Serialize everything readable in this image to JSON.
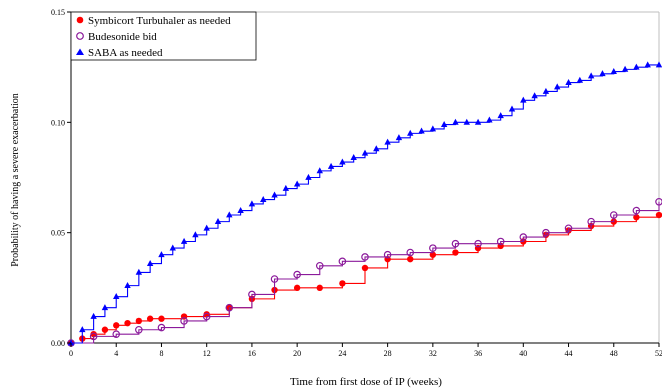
{
  "chart_data": {
    "type": "line",
    "title": "",
    "xlabel": "Time from first dose of IP (weeks)",
    "ylabel": "Probability of having a severe exacerbation",
    "xlim": [
      0,
      52
    ],
    "ylim": [
      0,
      0.15
    ],
    "xticks": [
      0,
      4,
      8,
      12,
      16,
      20,
      24,
      28,
      32,
      36,
      40,
      44,
      48,
      52
    ],
    "xtick_labels": [
      "0",
      "4",
      "8",
      "12",
      "16",
      "20",
      "24",
      "28",
      "32",
      "36",
      "40",
      "44",
      "48",
      "52"
    ],
    "yticks": [
      0,
      0.05,
      0.1,
      0.15
    ],
    "ytick_labels": [
      "0.00",
      "0.05",
      "0.10",
      "0.15"
    ],
    "grid": false,
    "legend_position": "top-left",
    "series": [
      {
        "name": "Symbicort Turbuhaler as needed",
        "marker": "filled-circle",
        "color": "#ff0000",
        "x": [
          0,
          1,
          2,
          3,
          4,
          5,
          6,
          7,
          8,
          10,
          12,
          14,
          16,
          18,
          20,
          22,
          24,
          26,
          28,
          30,
          32,
          34,
          36,
          38,
          40,
          42,
          44,
          46,
          48,
          50,
          52
        ],
        "y": [
          0.0,
          0.002,
          0.004,
          0.006,
          0.008,
          0.009,
          0.01,
          0.011,
          0.011,
          0.012,
          0.013,
          0.016,
          0.02,
          0.024,
          0.025,
          0.025,
          0.027,
          0.034,
          0.038,
          0.038,
          0.04,
          0.041,
          0.043,
          0.044,
          0.046,
          0.049,
          0.051,
          0.053,
          0.055,
          0.057,
          0.058
        ]
      },
      {
        "name": "Budesonide bid",
        "marker": "open-circle",
        "color": "#8b1a9b",
        "x": [
          0,
          2,
          4,
          6,
          8,
          10,
          12,
          14,
          16,
          18,
          20,
          22,
          24,
          26,
          28,
          30,
          32,
          34,
          36,
          38,
          40,
          42,
          44,
          46,
          48,
          50,
          52
        ],
        "y": [
          0.0,
          0.003,
          0.004,
          0.006,
          0.007,
          0.01,
          0.012,
          0.016,
          0.022,
          0.029,
          0.031,
          0.035,
          0.037,
          0.039,
          0.04,
          0.041,
          0.043,
          0.045,
          0.045,
          0.046,
          0.048,
          0.05,
          0.052,
          0.055,
          0.058,
          0.06,
          0.064
        ]
      },
      {
        "name": "SABA as needed",
        "marker": "filled-triangle",
        "color": "#0000ff",
        "x": [
          0,
          1,
          2,
          3,
          4,
          5,
          6,
          7,
          8,
          9,
          10,
          11,
          12,
          13,
          14,
          15,
          16,
          17,
          18,
          19,
          20,
          21,
          22,
          23,
          24,
          25,
          26,
          27,
          28,
          29,
          30,
          31,
          32,
          33,
          34,
          35,
          36,
          37,
          38,
          39,
          40,
          41,
          42,
          43,
          44,
          45,
          46,
          47,
          48,
          49,
          50,
          51,
          52
        ],
        "y": [
          0.0,
          0.006,
          0.012,
          0.016,
          0.021,
          0.026,
          0.032,
          0.036,
          0.04,
          0.043,
          0.046,
          0.049,
          0.052,
          0.055,
          0.058,
          0.06,
          0.063,
          0.065,
          0.067,
          0.07,
          0.072,
          0.075,
          0.078,
          0.08,
          0.082,
          0.084,
          0.086,
          0.088,
          0.091,
          0.093,
          0.095,
          0.096,
          0.097,
          0.099,
          0.1,
          0.1,
          0.1,
          0.101,
          0.103,
          0.106,
          0.11,
          0.112,
          0.114,
          0.116,
          0.118,
          0.119,
          0.121,
          0.122,
          0.123,
          0.124,
          0.125,
          0.126,
          0.126
        ]
      }
    ]
  }
}
